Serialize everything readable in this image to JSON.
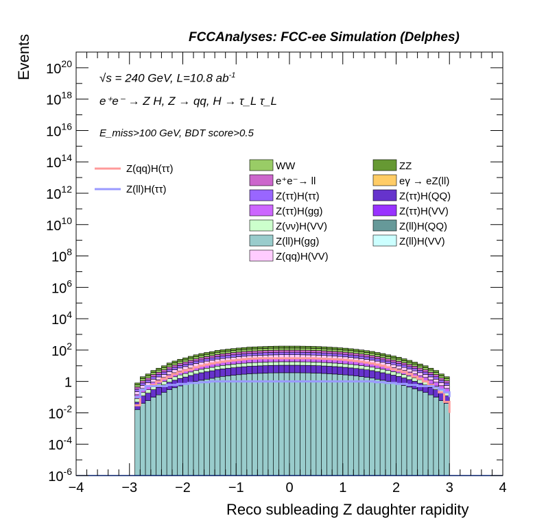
{
  "header": {
    "title": "FCCAnalyses: FCC-ee Simulation (Delphes)"
  },
  "annotations": {
    "energy": "√s = 240 GeV, L=10.8 ab",
    "energy_sup": "-1",
    "process": "e⁺e⁻ → Z H, Z → qq, H → τ_L τ_L",
    "cut": "E_miss>100 GeV, BDT score>0.5"
  },
  "chart_data": {
    "type": "stacked histogram",
    "title": "FCCAnalyses: FCC-ee Simulation (Delphes)",
    "xlabel": "Reco subleading Z daughter rapidity",
    "ylabel": "Events",
    "xlim": [
      -4,
      4
    ],
    "ylim": [
      1e-06,
      1e+21
    ],
    "log_y": true,
    "x_ticks": [
      "−4",
      "−3",
      "−2",
      "−1",
      "0",
      "1",
      "2",
      "3",
      "4"
    ],
    "y_ticks": [
      "10^-6",
      "10^-4",
      "10^-2",
      "1",
      "10^2",
      "10^4",
      "10^6",
      "10^8",
      "10^10",
      "10^12",
      "10^14",
      "10^16",
      "10^18",
      "10^20"
    ],
    "bin_edges": [
      -2.9,
      -2.8,
      -2.7,
      -2.6,
      -2.5,
      -2.4,
      -2.3,
      -2.2,
      -2.1,
      -2.0,
      -1.9,
      -1.8,
      -1.7,
      -1.6,
      -1.5,
      -1.4,
      -1.3,
      -1.2,
      -1.1,
      -1.0,
      -0.9,
      -0.8,
      -0.7,
      -0.6,
      -0.5,
      -0.4,
      -0.3,
      -0.2,
      -0.1,
      0.0,
      0.1,
      0.2,
      0.3,
      0.4,
      0.5,
      0.6,
      0.7,
      0.8,
      0.9,
      1.0,
      1.1,
      1.2,
      1.3,
      1.4,
      1.5,
      1.6,
      1.7,
      1.8,
      1.9,
      2.0,
      2.1,
      2.2,
      2.3,
      2.4,
      2.5,
      2.6,
      2.7,
      2.8,
      2.9,
      3.0
    ],
    "stack_order_bottom_to_top": [
      "Z(ll)H(gg)",
      "Z(ττ)H(QQ)",
      "Z(νν)H(VV)",
      "Z(ττ)H(gg)",
      "Z(qq)H(VV)",
      "Z(ττ)H(ττ)",
      "e⁺e⁻→ ll",
      "WW",
      "ZZ"
    ],
    "stack_top_envelope": [
      0.8,
      2,
      3,
      5,
      7,
      10,
      15,
      20,
      26,
      32,
      40,
      50,
      60,
      70,
      80,
      95,
      105,
      115,
      125,
      135,
      145,
      155,
      160,
      165,
      170,
      175,
      178,
      180,
      180,
      180,
      180,
      178,
      176,
      172,
      168,
      162,
      155,
      148,
      140,
      132,
      122,
      112,
      102,
      92,
      82,
      70,
      60,
      50,
      42,
      35,
      28,
      22,
      17,
      13,
      10,
      7,
      5,
      3,
      2,
      0.5
    ],
    "legend": [
      {
        "name": "Z(qq)H(ττ)",
        "style": "line",
        "color": "#ff9a9a"
      },
      {
        "name": "Z(ll)H(ττ)",
        "style": "line",
        "color": "#9a9aff"
      },
      {
        "name": "WW",
        "color": "#99cc66"
      },
      {
        "name": "ZZ",
        "color": "#669933"
      },
      {
        "name": "e⁺e⁻→ ll",
        "color": "#cc66cc"
      },
      {
        "name": "eγ → eZ(ll)",
        "color": "#ffcc66"
      },
      {
        "name": "Z(ττ)H(ττ)",
        "color": "#9966ff"
      },
      {
        "name": "Z(ττ)H(QQ)",
        "color": "#6633cc"
      },
      {
        "name": "Z(ττ)H(gg)",
        "color": "#cc66ff"
      },
      {
        "name": "Z(ττ)H(VV)",
        "color": "#9933ff"
      },
      {
        "name": "Z(νν)H(VV)",
        "color": "#ccffcc"
      },
      {
        "name": "Z(ll)H(QQ)",
        "color": "#669999"
      },
      {
        "name": "Z(ll)H(gg)",
        "color": "#99cccc"
      },
      {
        "name": "Z(ll)H(VV)",
        "color": "#ccffff"
      },
      {
        "name": "Z(qq)H(VV)",
        "color": "#ffccff"
      }
    ],
    "line_series": [
      {
        "name": "Z(qq)H(ττ)",
        "color": "#ff9a9a",
        "values": [
          0.03,
          0.3,
          0.5,
          0.6,
          1,
          1.5,
          2,
          3,
          4,
          5,
          6,
          8,
          10,
          12,
          14,
          16,
          18,
          20,
          22,
          24,
          26,
          28,
          29,
          30,
          30,
          30,
          30,
          30,
          30,
          30,
          30,
          30,
          30,
          30,
          29,
          28,
          27,
          26,
          25,
          24,
          22,
          20,
          18,
          16,
          14,
          12,
          10,
          8,
          6,
          5,
          4,
          3,
          2,
          1.5,
          1,
          0.6,
          0.4,
          0.2,
          0.05,
          0.01
        ]
      },
      {
        "name": "Z(ll)H(ττ)",
        "color": "#9a9aff",
        "values": [
          0.1,
          0.3,
          0.5,
          0.5,
          0.5,
          0.5,
          0.6,
          0.6,
          0.7,
          0.7,
          0.8,
          0.8,
          0.9,
          0.9,
          1,
          1,
          1,
          1,
          1,
          1,
          1,
          1,
          1,
          1,
          1,
          1,
          1,
          1,
          1,
          1,
          1,
          1,
          1,
          1,
          1,
          1,
          1,
          1,
          1,
          1,
          1,
          1,
          1,
          1,
          1,
          0.9,
          0.9,
          0.8,
          0.8,
          0.7,
          0.7,
          0.6,
          0.6,
          0.5,
          0.5,
          0.5,
          0.4,
          0.3,
          0.2,
          0.1
        ]
      }
    ]
  }
}
